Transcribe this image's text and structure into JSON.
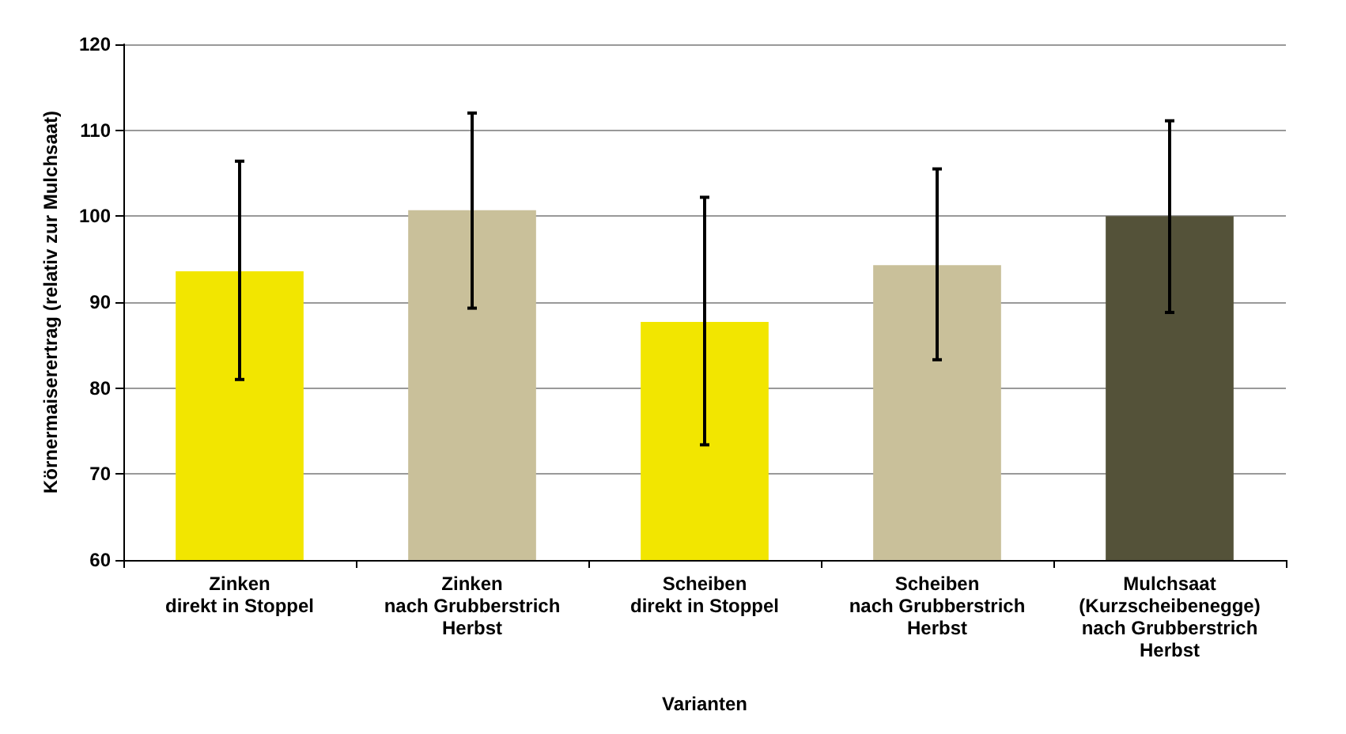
{
  "chart_data": {
    "type": "bar",
    "xlabel": "Varianten",
    "ylabel": "Körnermaiserertrag (relativ zur Mulchsaat)",
    "categories": [
      "Zinken\ndirekt in Stoppel",
      "Zinken\nnach Grubberstrich\nHerbst",
      "Scheiben\ndirekt in Stoppel",
      "Scheiben\nnach Grubberstrich\nHerbst",
      "Mulchsaat\n(Kurzscheibenegge)\nnach Grubberstrich\nHerbst"
    ],
    "values": [
      93.6,
      100.7,
      87.7,
      94.3,
      100.0
    ],
    "colors": [
      "#f2e600",
      "#c9c09a",
      "#f2e600",
      "#c9c09a",
      "#545239"
    ],
    "errors": [
      [
        81,
        106.4
      ],
      [
        89.3,
        112
      ],
      [
        73.4,
        102.2
      ],
      [
        83.3,
        105.5
      ],
      [
        88.8,
        111.1
      ]
    ],
    "ylim": [
      60,
      120
    ],
    "yticks": [
      60,
      70,
      80,
      90,
      100,
      110,
      120
    ],
    "grid": "y"
  }
}
